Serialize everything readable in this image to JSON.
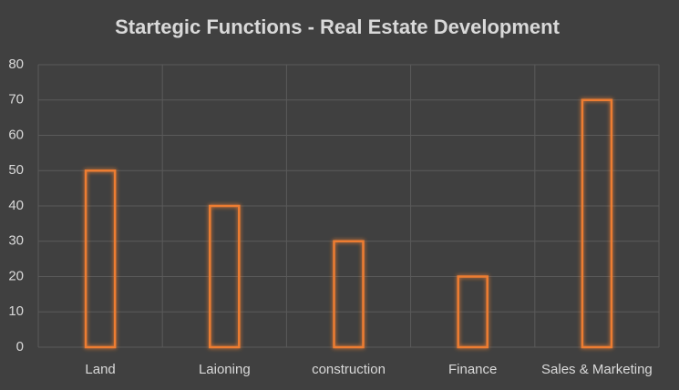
{
  "chart_data": {
    "type": "bar",
    "title": "Startegic Functions - Real Estate Development",
    "categories": [
      "Land",
      "Laioning",
      "construction",
      "Finance",
      "Sales & Marketing"
    ],
    "values": [
      50,
      40,
      30,
      20,
      70
    ],
    "color": "#ed7d31",
    "ylim": [
      0,
      80
    ],
    "yticks": [
      0,
      10,
      20,
      30,
      40,
      50,
      60,
      70,
      80
    ],
    "grid": true
  }
}
